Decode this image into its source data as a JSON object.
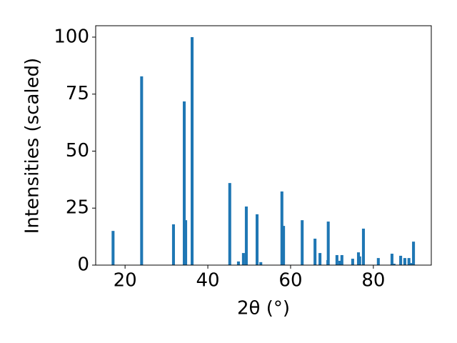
{
  "chart_data": {
    "type": "bar",
    "xlabel": "2θ (°)",
    "ylabel": "Intensities (scaled)",
    "color": "#1f77b4",
    "x": [
      17.1,
      24.0,
      31.7,
      34.3,
      34.65,
      36.2,
      45.3,
      47.4,
      48.6,
      49.3,
      51.9,
      52.8,
      57.9,
      58.3,
      62.8,
      65.9,
      67.1,
      69.0,
      69.1,
      71.2,
      71.9,
      72.4,
      75.0,
      76.4,
      76.7,
      77.6,
      81.2,
      84.5,
      85.0,
      86.6,
      87.6,
      88.6,
      89.1,
      89.7
    ],
    "values": [
      15.0,
      82.8,
      17.9,
      71.8,
      19.7,
      100,
      36.0,
      1.6,
      5.3,
      25.7,
      22.3,
      1.3,
      32.3,
      17.2,
      19.7,
      11.6,
      5.3,
      2.2,
      19.1,
      4.4,
      1.9,
      4.4,
      2.8,
      5.6,
      3.8,
      16.0,
      3.1,
      5.0,
      0.6,
      4.1,
      3.1,
      3.1,
      0.9,
      10.3
    ],
    "xlim": [
      12.9,
      94.0
    ],
    "ylim": [
      0,
      105
    ],
    "xticks": [
      20,
      40,
      60,
      80
    ],
    "yticks": [
      0,
      25,
      50,
      75,
      100
    ]
  }
}
